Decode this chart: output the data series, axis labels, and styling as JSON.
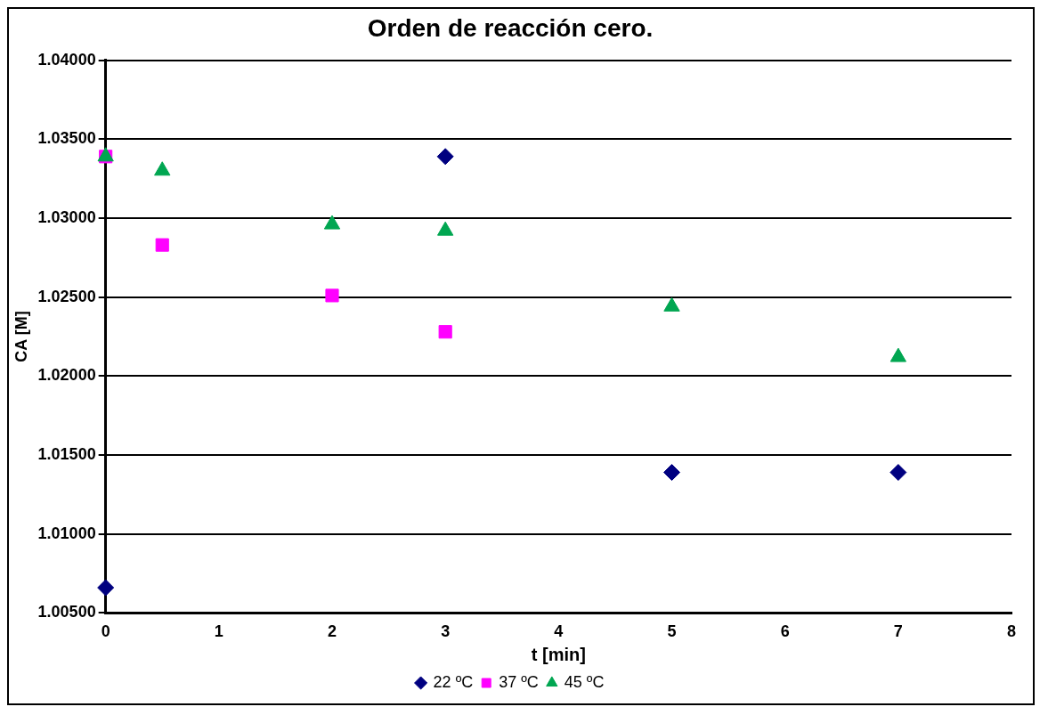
{
  "chart_data": {
    "type": "scatter",
    "title": "Orden de reacción cero.",
    "xlabel": "t [min]",
    "ylabel": "CA [M]",
    "xlim": [
      0,
      8
    ],
    "xticks": [
      0,
      1,
      2,
      3,
      4,
      5,
      6,
      7,
      8
    ],
    "ylim": [
      1.005,
      1.04
    ],
    "yticks": [
      {
        "value": 1.005,
        "label": "1.00500"
      },
      {
        "value": 1.01,
        "label": "1.01000"
      },
      {
        "value": 1.015,
        "label": "1.01500"
      },
      {
        "value": 1.02,
        "label": "1.02000"
      },
      {
        "value": 1.025,
        "label": "1.02500"
      },
      {
        "value": 1.03,
        "label": "1.03000"
      },
      {
        "value": 1.035,
        "label": "1.03500"
      },
      {
        "value": 1.04,
        "label": "1.04000"
      }
    ],
    "grid": "y",
    "legend": "bottom",
    "series": [
      {
        "name": "22 ºC",
        "color": "#000080",
        "marker": "diamond",
        "x": [
          0,
          3,
          5,
          7
        ],
        "values": [
          1.0066,
          1.0339,
          1.0139,
          1.0139
        ]
      },
      {
        "name": "37 ºC",
        "color": "#ff00ff",
        "marker": "square",
        "x": [
          0,
          0.5,
          2,
          3
        ],
        "values": [
          1.0339,
          1.0283,
          1.0251,
          1.0228
        ]
      },
      {
        "name": "45 ºC",
        "color": "#00a651",
        "marker": "triangle",
        "x": [
          0,
          0.5,
          2,
          3,
          5,
          7
        ],
        "values": [
          1.0339,
          1.033,
          1.0296,
          1.0292,
          1.0244,
          1.0212
        ]
      }
    ]
  }
}
